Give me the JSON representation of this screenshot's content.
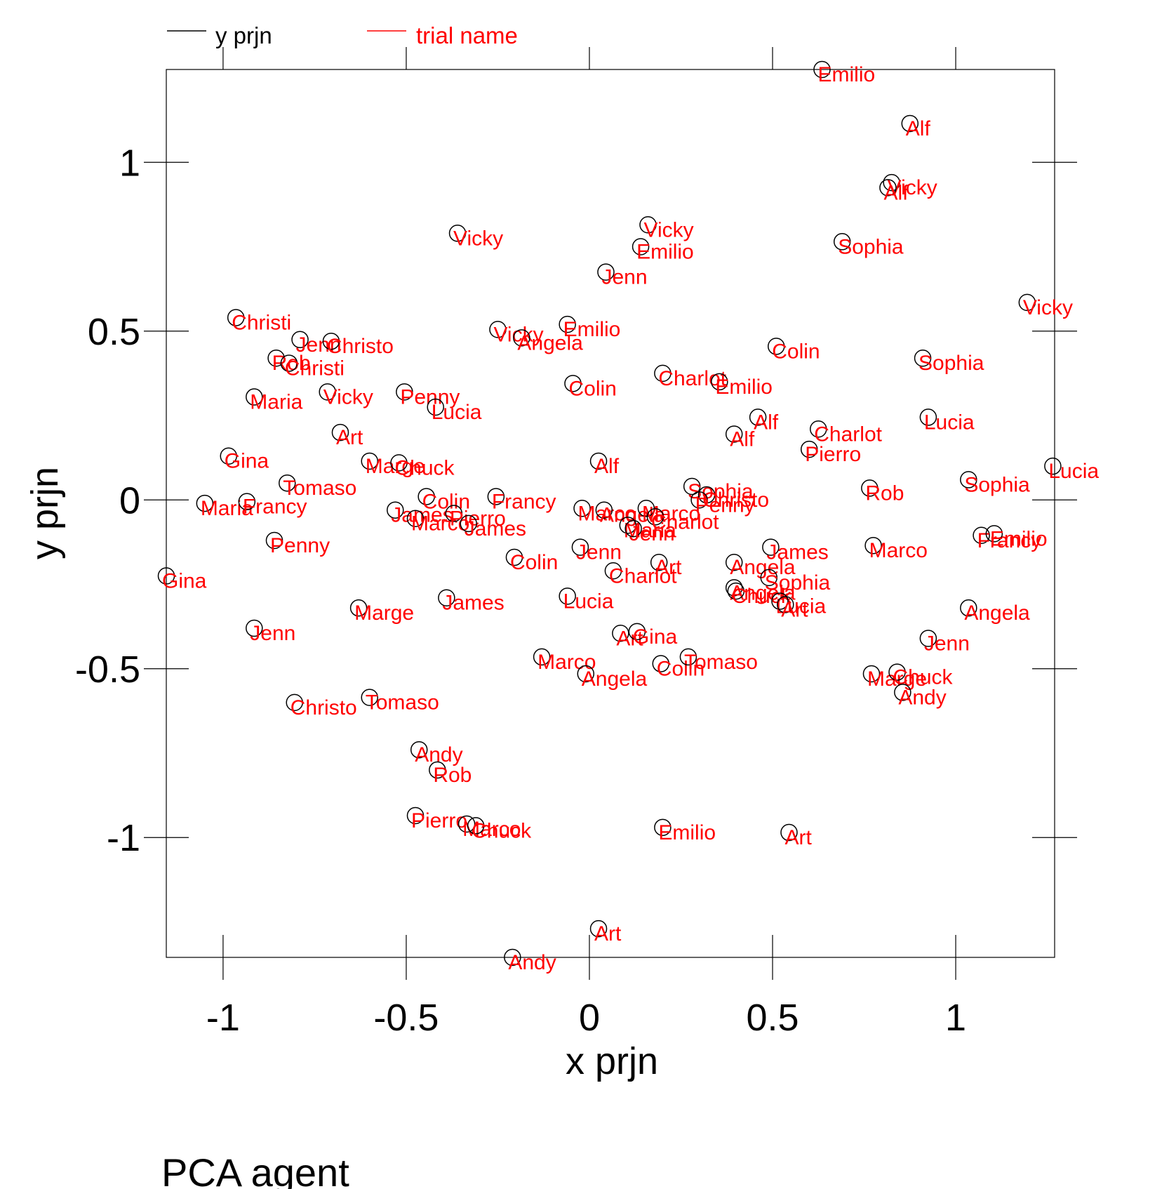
{
  "chart_data": {
    "type": "scatter",
    "title": "PCA  agent",
    "xlabel": "x prjn",
    "ylabel": "y prjn",
    "xlim": [
      -1.155,
      1.27
    ],
    "ylim": [
      -1.355,
      1.275
    ],
    "xticks": [
      -1,
      -0.5,
      0,
      0.5,
      1
    ],
    "yticks": [
      -1,
      -0.5,
      0,
      0.5,
      1
    ],
    "xtick_labels": [
      "-1",
      "-0.5",
      "0",
      "0.5",
      "1"
    ],
    "ytick_labels": [
      "-1",
      "-0.5",
      "0",
      "0.5",
      "1"
    ],
    "legend_position": "top-left",
    "legend": [
      {
        "name": "y prjn",
        "color": "#000000"
      },
      {
        "name": "trial name",
        "color": "#ff0000"
      }
    ],
    "marker_color": "#000000",
    "label_color": "#ff0000",
    "points": [
      {
        "x": 0.635,
        "y": 1.275,
        "label": "Emilio"
      },
      {
        "x": 0.875,
        "y": 1.115,
        "label": "Alf"
      },
      {
        "x": 0.825,
        "y": 0.94,
        "label": "Vicky"
      },
      {
        "x": 0.815,
        "y": 0.925,
        "label": "Alf"
      },
      {
        "x": 0.16,
        "y": 0.815,
        "label": "Vicky"
      },
      {
        "x": 0.14,
        "y": 0.75,
        "label": "Emilio"
      },
      {
        "x": 0.69,
        "y": 0.765,
        "label": "Sophia"
      },
      {
        "x": -0.36,
        "y": 0.79,
        "label": "Vicky"
      },
      {
        "x": 0.045,
        "y": 0.675,
        "label": "Jenn"
      },
      {
        "x": 1.195,
        "y": 0.585,
        "label": "Vicky"
      },
      {
        "x": -0.965,
        "y": 0.54,
        "label": "Christi"
      },
      {
        "x": -0.79,
        "y": 0.475,
        "label": "Jenn"
      },
      {
        "x": -0.705,
        "y": 0.47,
        "label": "Christo"
      },
      {
        "x": -0.855,
        "y": 0.42,
        "label": "Rob"
      },
      {
        "x": -0.82,
        "y": 0.405,
        "label": "Christi"
      },
      {
        "x": -0.25,
        "y": 0.505,
        "label": "Vicky"
      },
      {
        "x": -0.185,
        "y": 0.48,
        "label": "Angela"
      },
      {
        "x": -0.06,
        "y": 0.52,
        "label": "Emilio"
      },
      {
        "x": 0.51,
        "y": 0.455,
        "label": "Colin"
      },
      {
        "x": 0.91,
        "y": 0.42,
        "label": "Sophia"
      },
      {
        "x": -0.915,
        "y": 0.305,
        "label": "Maria"
      },
      {
        "x": -0.715,
        "y": 0.32,
        "label": "Vicky"
      },
      {
        "x": -0.505,
        "y": 0.32,
        "label": "Penny"
      },
      {
        "x": -0.42,
        "y": 0.275,
        "label": "Lucia"
      },
      {
        "x": -0.045,
        "y": 0.345,
        "label": "Colin"
      },
      {
        "x": 0.2,
        "y": 0.375,
        "label": "Charlot"
      },
      {
        "x": 0.355,
        "y": 0.35,
        "label": "Emilio"
      },
      {
        "x": 0.46,
        "y": 0.245,
        "label": "Alf"
      },
      {
        "x": 0.395,
        "y": 0.195,
        "label": "Alf"
      },
      {
        "x": 0.625,
        "y": 0.21,
        "label": "Charlot"
      },
      {
        "x": 0.6,
        "y": 0.15,
        "label": "Pierro"
      },
      {
        "x": 0.925,
        "y": 0.245,
        "label": "Lucia"
      },
      {
        "x": -0.68,
        "y": 0.2,
        "label": "Art"
      },
      {
        "x": -0.985,
        "y": 0.13,
        "label": "Gina"
      },
      {
        "x": -0.6,
        "y": 0.115,
        "label": "Marge"
      },
      {
        "x": -0.52,
        "y": 0.11,
        "label": "Chuck"
      },
      {
        "x": 0.025,
        "y": 0.115,
        "label": "Alf"
      },
      {
        "x": 1.265,
        "y": 0.1,
        "label": "Lucia"
      },
      {
        "x": -0.825,
        "y": 0.05,
        "label": "Tomaso"
      },
      {
        "x": 0.28,
        "y": 0.04,
        "label": "Sophia"
      },
      {
        "x": 0.32,
        "y": 0.015,
        "label": "Christo"
      },
      {
        "x": 0.3,
        "y": 0.0,
        "label": "Penny"
      },
      {
        "x": 0.765,
        "y": 0.035,
        "label": "Rob"
      },
      {
        "x": 1.035,
        "y": 0.06,
        "label": "Sophia"
      },
      {
        "x": -1.05,
        "y": -0.01,
        "label": "Maria"
      },
      {
        "x": -0.935,
        "y": -0.005,
        "label": "Francy"
      },
      {
        "x": -0.445,
        "y": 0.01,
        "label": "Colin"
      },
      {
        "x": -0.255,
        "y": 0.01,
        "label": "Francy"
      },
      {
        "x": -0.53,
        "y": -0.03,
        "label": "James"
      },
      {
        "x": -0.475,
        "y": -0.055,
        "label": "Marco"
      },
      {
        "x": -0.37,
        "y": -0.04,
        "label": "Pierro"
      },
      {
        "x": -0.33,
        "y": -0.07,
        "label": "James"
      },
      {
        "x": -0.02,
        "y": -0.025,
        "label": "Marco"
      },
      {
        "x": 0.04,
        "y": -0.03,
        "label": "Angela"
      },
      {
        "x": 0.155,
        "y": -0.025,
        "label": "Marco"
      },
      {
        "x": 0.18,
        "y": -0.05,
        "label": "Charlot"
      },
      {
        "x": 0.105,
        "y": -0.075,
        "label": "Maria"
      },
      {
        "x": 0.12,
        "y": -0.085,
        "label": "Jenn"
      },
      {
        "x": -0.86,
        "y": -0.12,
        "label": "Penny"
      },
      {
        "x": -0.025,
        "y": -0.14,
        "label": "Jenn"
      },
      {
        "x": -0.205,
        "y": -0.17,
        "label": "Colin"
      },
      {
        "x": 0.065,
        "y": -0.21,
        "label": "Charlot"
      },
      {
        "x": 0.19,
        "y": -0.185,
        "label": "Art"
      },
      {
        "x": 0.395,
        "y": -0.185,
        "label": "Angela"
      },
      {
        "x": 0.495,
        "y": -0.14,
        "label": "James"
      },
      {
        "x": 0.775,
        "y": -0.135,
        "label": "Marco"
      },
      {
        "x": 1.07,
        "y": -0.105,
        "label": "Francy"
      },
      {
        "x": 1.105,
        "y": -0.1,
        "label": "Emilio"
      },
      {
        "x": -1.155,
        "y": -0.225,
        "label": "Gina"
      },
      {
        "x": -0.39,
        "y": -0.29,
        "label": "James"
      },
      {
        "x": -0.06,
        "y": -0.285,
        "label": "Lucia"
      },
      {
        "x": 0.395,
        "y": -0.26,
        "label": "Angela"
      },
      {
        "x": 0.4,
        "y": -0.27,
        "label": "Chuck"
      },
      {
        "x": 0.49,
        "y": -0.23,
        "label": "Sophia"
      },
      {
        "x": 0.52,
        "y": -0.3,
        "label": "Lucia"
      },
      {
        "x": 0.535,
        "y": -0.31,
        "label": "Art"
      },
      {
        "x": 1.035,
        "y": -0.32,
        "label": "Angela"
      },
      {
        "x": -0.63,
        "y": -0.32,
        "label": "Marge"
      },
      {
        "x": -0.915,
        "y": -0.38,
        "label": "Jenn"
      },
      {
        "x": 0.085,
        "y": -0.395,
        "label": "Art"
      },
      {
        "x": 0.13,
        "y": -0.39,
        "label": "Gina"
      },
      {
        "x": 0.925,
        "y": -0.41,
        "label": "Jenn"
      },
      {
        "x": -0.13,
        "y": -0.465,
        "label": "Marco"
      },
      {
        "x": 0.195,
        "y": -0.485,
        "label": "Colin"
      },
      {
        "x": 0.27,
        "y": -0.465,
        "label": "Tomaso"
      },
      {
        "x": -0.01,
        "y": -0.515,
        "label": "Angela"
      },
      {
        "x": 0.77,
        "y": -0.515,
        "label": "Marge"
      },
      {
        "x": 0.84,
        "y": -0.51,
        "label": "Chuck"
      },
      {
        "x": 0.855,
        "y": -0.57,
        "label": "Andy"
      },
      {
        "x": -0.805,
        "y": -0.6,
        "label": "Christo"
      },
      {
        "x": -0.6,
        "y": -0.585,
        "label": "Tomaso"
      },
      {
        "x": -0.465,
        "y": -0.74,
        "label": "Andy"
      },
      {
        "x": -0.415,
        "y": -0.8,
        "label": "Rob"
      },
      {
        "x": -0.475,
        "y": -0.935,
        "label": "Pierro"
      },
      {
        "x": -0.335,
        "y": -0.96,
        "label": "Marco"
      },
      {
        "x": -0.31,
        "y": -0.965,
        "label": "Chuck"
      },
      {
        "x": 0.2,
        "y": -0.97,
        "label": "Emilio"
      },
      {
        "x": 0.545,
        "y": -0.985,
        "label": "Art"
      },
      {
        "x": 0.025,
        "y": -1.27,
        "label": "Art"
      },
      {
        "x": -0.21,
        "y": -1.355,
        "label": "Andy"
      }
    ]
  }
}
